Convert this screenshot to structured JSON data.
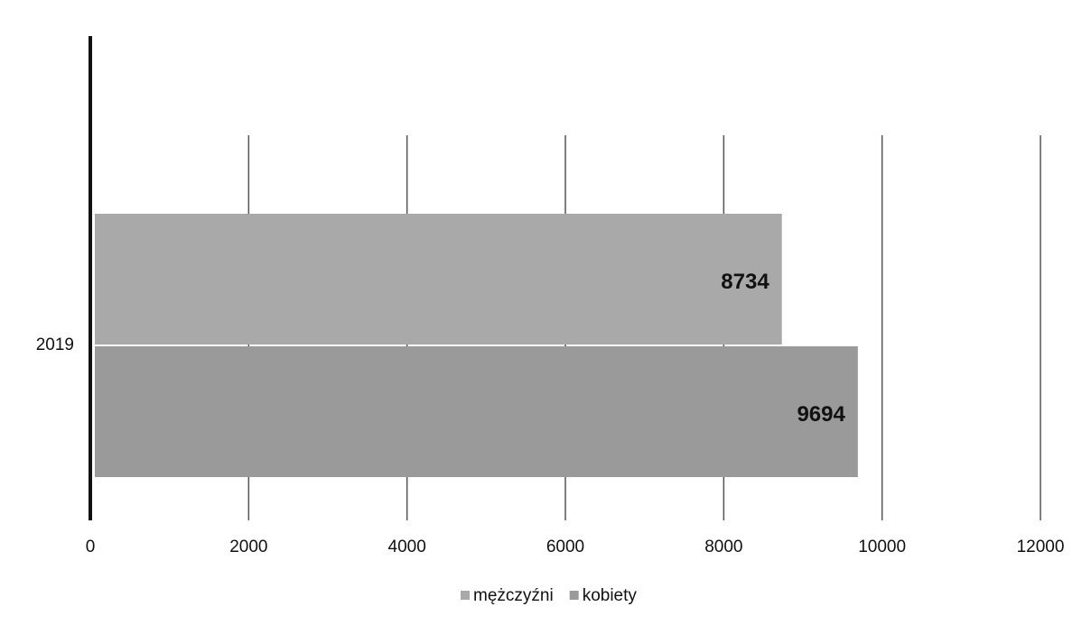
{
  "chart_data": {
    "type": "barh",
    "categories": [
      "2019"
    ],
    "series": [
      {
        "name": "mężczyźni",
        "color": "#a9a9a9",
        "values": [
          8734
        ]
      },
      {
        "name": "kobiety",
        "color": "#9a9a9a",
        "values": [
          9694
        ]
      }
    ],
    "xlim": [
      0,
      12000
    ],
    "xticks": [
      0,
      2000,
      4000,
      6000,
      8000,
      10000,
      12000
    ],
    "grid": true,
    "legend": "bottom"
  }
}
